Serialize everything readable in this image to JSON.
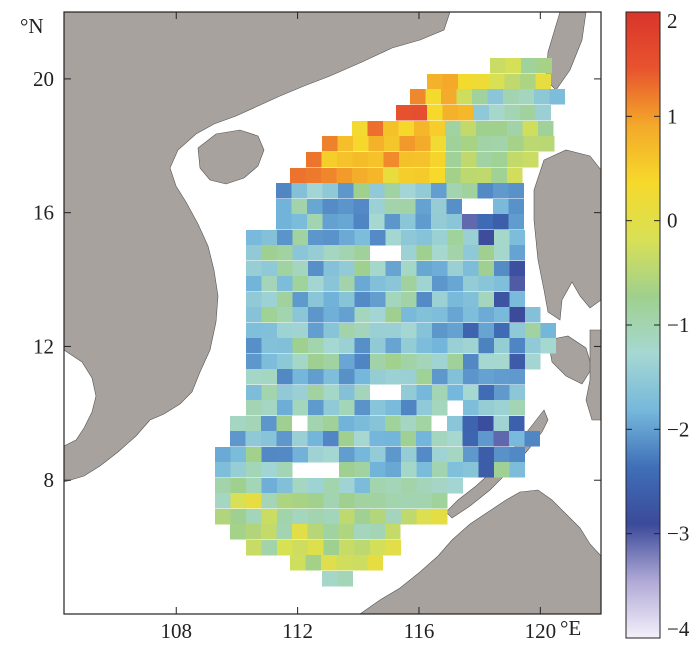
{
  "map": {
    "lat_axis": {
      "north_label": "°N",
      "ticks": [
        {
          "value": 20,
          "label": "20"
        },
        {
          "value": 16,
          "label": "16"
        },
        {
          "value": 12,
          "label": "12"
        },
        {
          "value": 8,
          "label": "8"
        }
      ]
    },
    "lon_axis": {
      "east_label": "°E",
      "ticks": [
        {
          "value": 108,
          "label": "108"
        },
        {
          "value": 112,
          "label": "112"
        },
        {
          "value": 116,
          "label": "116"
        },
        {
          "value": 120,
          "label": "120"
        }
      ]
    },
    "extent": {
      "lon_min": 104.3,
      "lon_max": 122.0,
      "lat_min": 4.0,
      "lat_max": 22.0
    },
    "colorbar": {
      "min": -4,
      "max": 2,
      "ticks": [
        {
          "value": 2,
          "label": "2"
        },
        {
          "value": 1,
          "label": "1"
        },
        {
          "value": 0,
          "label": "0"
        },
        {
          "value": -1,
          "label": "−1"
        },
        {
          "value": -2,
          "label": "−2"
        },
        {
          "value": -3,
          "label": "−3"
        },
        {
          "value": -4,
          "label": "−4"
        }
      ],
      "stops": [
        "#f4f0fa",
        "#b0a9d6",
        "#3b4a9a",
        "#3f6fb8",
        "#76b8dc",
        "#a6d8d2",
        "#9fd08e",
        "#d8e055",
        "#f6d92b",
        "#f4a92a",
        "#e8542e",
        "#d9352c"
      ]
    },
    "land_color": "#a8a29e",
    "sea_color": "#ffffff"
  }
}
